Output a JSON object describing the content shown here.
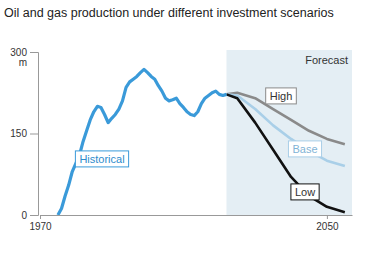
{
  "chart_data": {
    "type": "line",
    "title": "Oil and gas production under different investment scenarios",
    "ylabel": "m",
    "xlim": [
      1970,
      2057
    ],
    "xticks": [
      1970,
      2050
    ],
    "ylim": [
      0,
      300
    ],
    "yticks": [
      0,
      150,
      300
    ],
    "grid": false,
    "forecast": {
      "label": "Forecast",
      "start": 2022
    },
    "series": [
      {
        "name": "Historical",
        "color": "#3a9ad9",
        "x": [
          1975,
          1976,
          1977,
          1978,
          1979,
          1980,
          1981,
          1982,
          1983,
          1984,
          1985,
          1986,
          1987,
          1988,
          1989,
          1990,
          1991,
          1992,
          1993,
          1994,
          1995,
          1996,
          1997,
          1998,
          1999,
          2000,
          2001,
          2002,
          2003,
          2004,
          2005,
          2006,
          2007,
          2008,
          2009,
          2010,
          2011,
          2012,
          2013,
          2014,
          2015,
          2016,
          2017,
          2018,
          2019,
          2020,
          2021,
          2022
        ],
        "values": [
          0,
          12,
          35,
          55,
          80,
          95,
          110,
          135,
          155,
          175,
          190,
          200,
          198,
          185,
          170,
          178,
          185,
          195,
          210,
          235,
          245,
          250,
          255,
          262,
          268,
          262,
          255,
          250,
          238,
          228,
          215,
          210,
          212,
          215,
          205,
          198,
          190,
          185,
          183,
          190,
          205,
          215,
          220,
          225,
          228,
          222,
          220,
          222
        ]
      },
      {
        "name": "High",
        "color": "#8a8a8a",
        "x": [
          2022,
          2025,
          2030,
          2035,
          2040,
          2045,
          2050,
          2055
        ],
        "values": [
          222,
          225,
          215,
          195,
          175,
          155,
          140,
          130
        ]
      },
      {
        "name": "Base",
        "color": "#a9cfe8",
        "x": [
          2022,
          2025,
          2030,
          2035,
          2040,
          2045,
          2050,
          2055
        ],
        "values": [
          222,
          220,
          195,
          165,
          140,
          118,
          100,
          90
        ]
      },
      {
        "name": "Low",
        "color": "#111111",
        "x": [
          2022,
          2025,
          2030,
          2035,
          2040,
          2045,
          2050,
          2055
        ],
        "values": [
          222,
          215,
          170,
          120,
          70,
          35,
          15,
          5
        ]
      }
    ]
  }
}
